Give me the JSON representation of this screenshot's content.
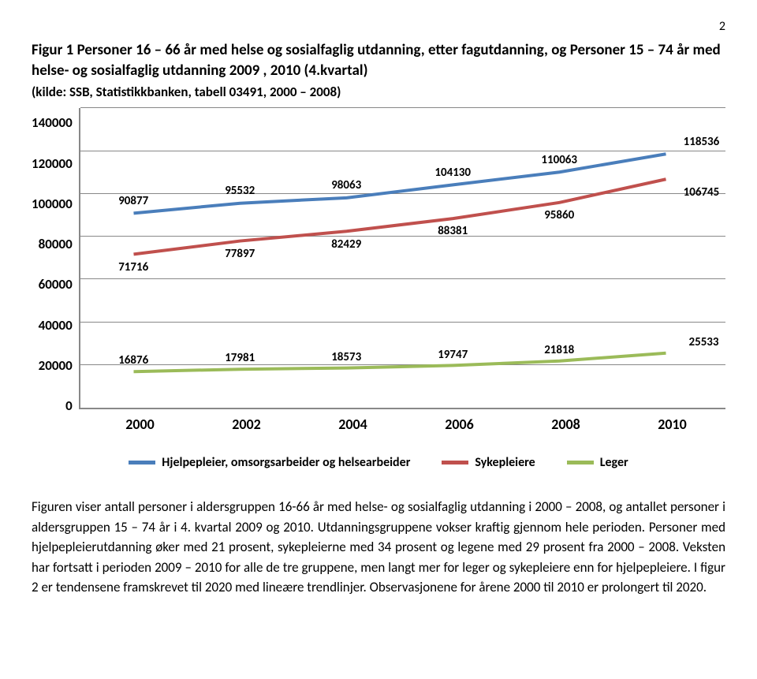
{
  "page_number": "2",
  "title": "Figur 1 Personer 16 – 66 år med helse og sosialfaglig utdanning, etter fagutdanning, og Personer 15 – 74 år med helse- og sosialfaglig utdanning 2009 , 2010 (4.kvartal)",
  "subtitle": "(kilde: SSB, Statistikkbanken, tabell 03491, 2000 – 2008)",
  "chart": {
    "type": "line",
    "ylim": [
      0,
      140000
    ],
    "ytick_step": 20000,
    "y_ticks": [
      "140000",
      "120000",
      "100000",
      "80000",
      "60000",
      "40000",
      "20000",
      "0"
    ],
    "x_categories": [
      "2000",
      "2002",
      "2004",
      "2006",
      "2008",
      "2010"
    ],
    "grid_color": "#888888",
    "background_color": "#ffffff",
    "line_width": 4,
    "label_fontsize": 15,
    "axis_fontsize": 17,
    "series": [
      {
        "name": "Hjelpepleier, omsorgsarbeider og helsearbeider",
        "color": "#4a7ebb",
        "values": [
          90877,
          95532,
          98063,
          104130,
          110063,
          118536
        ],
        "label_offsets_y": [
          -16,
          -16,
          -16,
          -16,
          -16,
          -16
        ]
      },
      {
        "name": "Sykepleiere",
        "color": "#c0504d",
        "values": [
          71716,
          77897,
          82429,
          88381,
          95860,
          106745
        ],
        "label_offsets_y": [
          16,
          16,
          16,
          16,
          16,
          16
        ]
      },
      {
        "name": "Leger",
        "color": "#9bbb59",
        "values": [
          16876,
          17981,
          18573,
          19747,
          21818,
          25533
        ],
        "label_offsets_y": [
          -14,
          -14,
          -14,
          -14,
          -14,
          -14
        ]
      }
    ]
  },
  "body_text": "Figuren viser antall personer i aldersgruppen 16-66 år med helse- og sosialfaglig utdanning i 2000 – 2008, og antallet personer i aldersgruppen 15 – 74 år i 4. kvartal 2009 og 2010. Utdanningsgruppene vokser kraftig gjennom hele perioden. Personer med hjelpepleierutdanning øker med 21 prosent, sykepleierne med 34 prosent og legene med 29 prosent fra 2000 – 2008. Veksten har fortsatt i perioden 2009 – 2010 for alle de tre gruppene, men langt mer for leger og sykepleiere enn for hjelpepleiere. I figur 2 er tendensene framskrevet til 2020 med lineære trendlinjer. Observasjonene for årene 2000 til 2010 er prolongert  til 2020."
}
